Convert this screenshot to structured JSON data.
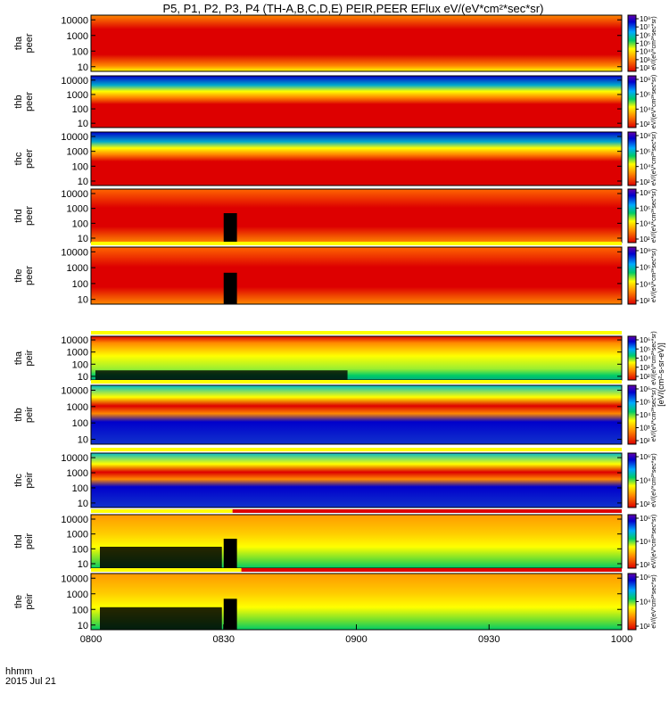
{
  "chart_data": {
    "type": "heatmap",
    "title": "P5, P1, P2, P3, P4 (TH-A,B,C,D,E) PEIR,PEER EFlux eV/(eV*cm²*sec*sr)",
    "xlabel": "hhmm",
    "date_label": "2015 Jul 21",
    "x_range": [
      "0800",
      "1000"
    ],
    "x_ticks": [
      "0800",
      "0830",
      "0900",
      "0930",
      "1000"
    ],
    "y_scale": "log",
    "y_ticks": [
      "10",
      "100",
      "1000",
      "10000"
    ],
    "colorbar_label": "[eV/(cm²-s-sr-eV)]",
    "colorbar_label_repeated": "eV/(eV*cm²*sec*sr)",
    "panels": [
      {
        "probe": "tha",
        "species": "peer",
        "ylabel": "tha peer",
        "cbar_ticks": [
          "10²",
          "10³",
          "10⁴",
          "10⁵",
          "10⁶",
          "10⁷",
          "10⁸"
        ],
        "status_bar": "none"
      },
      {
        "probe": "thb",
        "species": "peer",
        "ylabel": "thb peer",
        "cbar_ticks": [
          "10²",
          "10⁴",
          "10⁶",
          "10⁸"
        ],
        "status_bar": "none"
      },
      {
        "probe": "thc",
        "species": "peer",
        "ylabel": "thc peer",
        "cbar_ticks": [
          "10²",
          "10⁴",
          "10⁶",
          "10⁸"
        ],
        "status_bar": "none"
      },
      {
        "probe": "thd",
        "species": "peer",
        "ylabel": "thd peer",
        "cbar_ticks": [
          "10²",
          "10⁴",
          "10⁶",
          "10⁸"
        ],
        "status_bar": "none"
      },
      {
        "probe": "the",
        "species": "peer",
        "ylabel": "the peer",
        "cbar_ticks": [
          "10²",
          "10⁴",
          "10⁶",
          "10⁸"
        ],
        "status_bar": "yellow"
      },
      {
        "probe": "tha",
        "species": "peir",
        "ylabel": "tha peir",
        "cbar_ticks": [
          "10²",
          "10³",
          "10⁴",
          "10⁵",
          "10⁶"
        ],
        "status_bar": "yellow"
      },
      {
        "probe": "thb",
        "species": "peir",
        "ylabel": "thb peir",
        "cbar_ticks": [
          "10²",
          "10³",
          "10⁴",
          "10⁵",
          "10⁶"
        ],
        "status_bar": "yellow"
      },
      {
        "probe": "thc",
        "species": "peir",
        "ylabel": "thc peir",
        "cbar_ticks": [
          "10²",
          "10⁴",
          "10⁶"
        ],
        "status_bar": "yellow"
      },
      {
        "probe": "thd",
        "species": "peir",
        "ylabel": "thd peir",
        "cbar_ticks": [
          "10²",
          "10⁴",
          "10⁶"
        ],
        "status_bar": "yellow-then-red",
        "switch_time": "0832"
      },
      {
        "probe": "the",
        "species": "peir",
        "ylabel": "the peir",
        "cbar_ticks": [
          "10²",
          "10⁴",
          "10⁶"
        ],
        "status_bar": "yellow-then-red",
        "switch_time": "0834"
      }
    ]
  },
  "colors": {
    "low": "#0000cc",
    "mid_low": "#00cc66",
    "mid": "#ffff00",
    "mid_high": "#ff8800",
    "high": "#dd0000",
    "fill_gap": "#000000",
    "status_yellow": "#ffff00",
    "status_red": "#dd0000"
  }
}
